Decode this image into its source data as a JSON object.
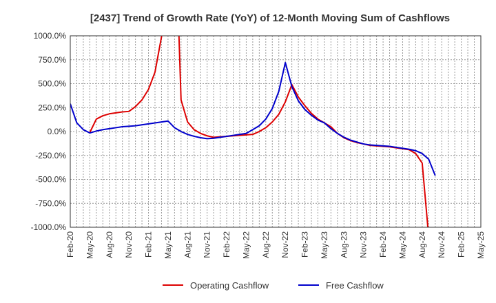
{
  "chart_data": {
    "type": "line",
    "title": "[2437]  Trend of Growth Rate (YoY) of 12-Month Moving Sum of Cashflows",
    "xlabel": "",
    "ylabel": "",
    "ylim": [
      -1000,
      1000
    ],
    "y_ticks": [
      1000,
      750,
      500,
      250,
      0,
      -250,
      -500,
      -750,
      -1000
    ],
    "y_tick_labels": [
      "1000.0%",
      "750.0%",
      "500.0%",
      "250.0%",
      "0.0%",
      "-250.0%",
      "-500.0%",
      "-750.0%",
      "-1000.0%"
    ],
    "x_tick_labels": [
      "Feb-20",
      "May-20",
      "Aug-20",
      "Nov-20",
      "Feb-21",
      "May-21",
      "Aug-21",
      "Nov-21",
      "Feb-22",
      "May-22",
      "Aug-22",
      "Nov-22",
      "Feb-23",
      "May-23",
      "Aug-23",
      "Nov-23",
      "Feb-24",
      "May-24",
      "Aug-24",
      "Nov-24",
      "Feb-25",
      "May-25"
    ],
    "grid": true,
    "legend_position": "bottom",
    "series": [
      {
        "name": "Operating Cashflow",
        "color": "#dd0000",
        "start_index": 3,
        "values": [
          -10,
          130,
          165,
          185,
          195,
          205,
          210,
          260,
          330,
          440,
          620,
          990,
          1600,
          2400,
          330,
          100,
          20,
          -20,
          -45,
          -60,
          -55,
          -50,
          -45,
          -40,
          -35,
          -30,
          0,
          40,
          100,
          180,
          310,
          490,
          360,
          270,
          190,
          130,
          90,
          50,
          -20,
          -65,
          -95,
          -115,
          -130,
          -145,
          -150,
          -155,
          -160,
          -170,
          -180,
          -190,
          -230,
          -330,
          -1100
        ]
      },
      {
        "name": "Free Cashflow",
        "color": "#0000cc",
        "start_index": 0,
        "values": [
          290,
          90,
          20,
          -15,
          5,
          20,
          30,
          40,
          50,
          55,
          60,
          70,
          80,
          90,
          100,
          110,
          40,
          0,
          -30,
          -50,
          -65,
          -75,
          -70,
          -60,
          -50,
          -40,
          -30,
          -20,
          20,
          60,
          130,
          240,
          420,
          720,
          470,
          320,
          230,
          170,
          120,
          90,
          30,
          -20,
          -60,
          -90,
          -110,
          -130,
          -140,
          -145,
          -150,
          -155,
          -165,
          -175,
          -185,
          -200,
          -230,
          -290,
          -460
        ]
      }
    ]
  }
}
